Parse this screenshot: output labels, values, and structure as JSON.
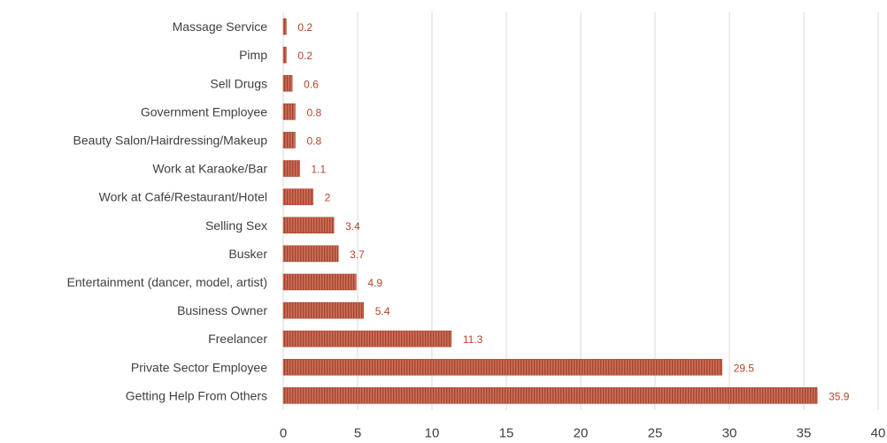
{
  "chart_data": {
    "type": "bar",
    "orientation": "horizontal",
    "categories": [
      "Massage Service",
      "Pimp",
      "Sell Drugs",
      "Government Employee",
      "Beauty Salon/Hairdressing/Makeup",
      "Work at Karaoke/Bar",
      "Work at Café/Restaurant/Hotel",
      "Selling Sex",
      "Busker",
      "Entertainment (dancer, model, artist)",
      "Business Owner",
      "Freelancer",
      "Private Sector Employee",
      "Getting Help From Others"
    ],
    "values": [
      0.2,
      0.2,
      0.6,
      0.8,
      0.8,
      1.1,
      2,
      3.4,
      3.7,
      4.9,
      5.4,
      11.3,
      29.5,
      35.9
    ],
    "value_labels": [
      "0.2",
      "0.2",
      "0.6",
      "0.8",
      "0.8",
      "1.1",
      "2",
      "3.4",
      "3.7",
      "4.9",
      "5.4",
      "11.3",
      "29.5",
      "35.9"
    ],
    "xlim": [
      0,
      40
    ],
    "xticks": [
      "0",
      "5",
      "10",
      "15",
      "20",
      "25",
      "30",
      "35",
      "40"
    ],
    "grid": "vertical",
    "legend": "none",
    "title": "",
    "xlabel": "",
    "ylabel": ""
  },
  "colors": {
    "bar_fill": "#c9705b",
    "bar_stripe": "#a8432d",
    "value_label": "#b5442a",
    "grid": "#d9d9d9",
    "axis_text": "#404040"
  }
}
